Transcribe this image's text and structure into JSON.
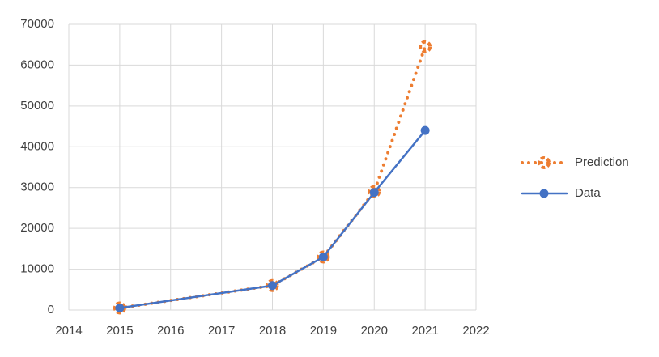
{
  "chart_data": {
    "type": "scatter-line",
    "xlim": [
      2014,
      2022
    ],
    "xticks": [
      2014,
      2015,
      2016,
      2017,
      2018,
      2019,
      2020,
      2021,
      2022
    ],
    "ylim": [
      0,
      70000
    ],
    "yticks": [
      0,
      10000,
      20000,
      30000,
      40000,
      50000,
      60000,
      70000
    ],
    "grid": true,
    "legend": "right",
    "series": [
      {
        "name": "Prediction",
        "color": "#ED7D31",
        "style": "dotted",
        "x": [
          2015,
          2018,
          2019,
          2020,
          2021
        ],
        "values": [
          500,
          6000,
          13000,
          29000,
          64500
        ]
      },
      {
        "name": "Data",
        "color": "#4472C4",
        "style": "solid",
        "x": [
          2015,
          2018,
          2019,
          2020,
          2021
        ],
        "values": [
          500,
          6000,
          13000,
          28800,
          44000
        ]
      }
    ]
  }
}
